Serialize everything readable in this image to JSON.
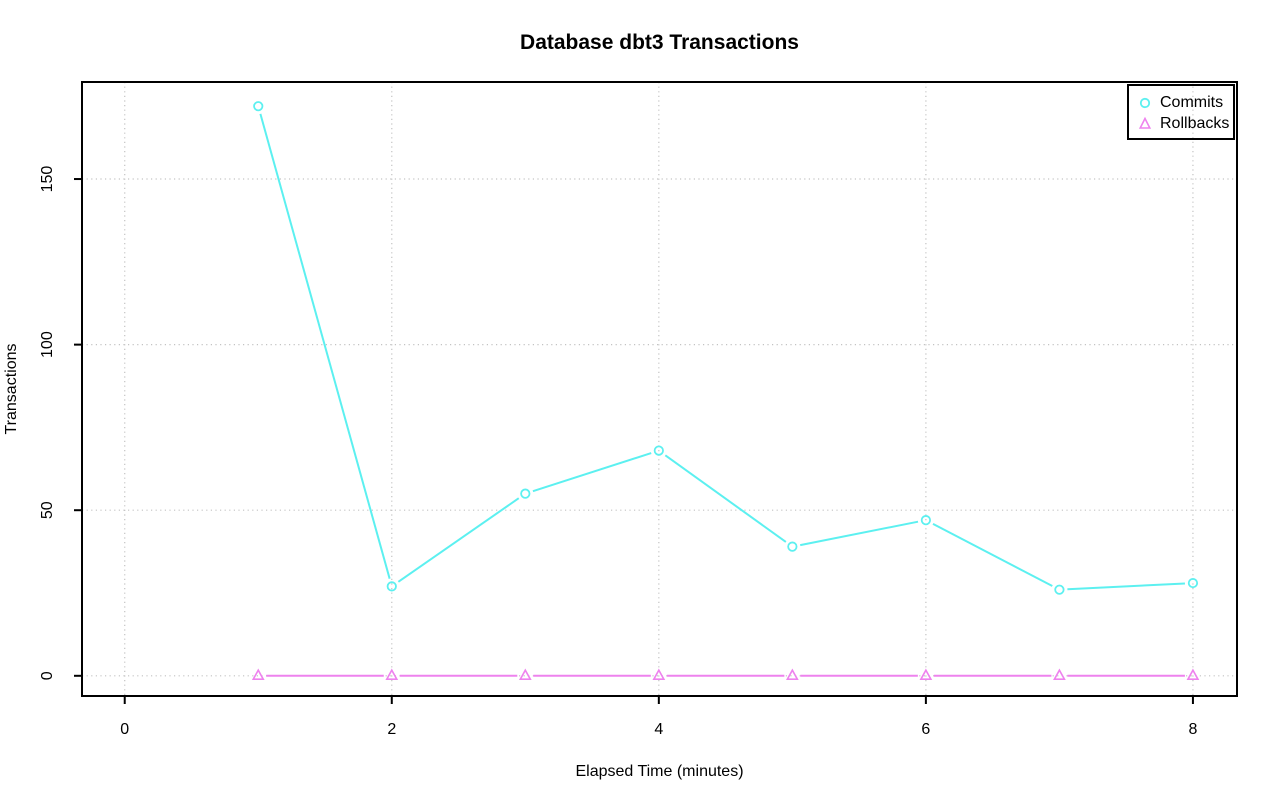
{
  "window": {
    "background": "#ffffff"
  },
  "chart_data": {
    "type": "line",
    "title": "Database dbt3 Transactions",
    "xlabel": "Elapsed Time (minutes)",
    "ylabel": "Transactions",
    "x": [
      1,
      2,
      3,
      4,
      5,
      6,
      7,
      8
    ],
    "series": [
      {
        "name": "Commits",
        "marker": "circle",
        "color": "#5CF0F0",
        "values": [
          172,
          27,
          55,
          68,
          39,
          47,
          26,
          28
        ]
      },
      {
        "name": "Rollbacks",
        "marker": "triangle",
        "color": "#EE82EE",
        "values": [
          0,
          0,
          0,
          0,
          0,
          0,
          0,
          0
        ]
      }
    ],
    "xticks": [
      "0",
      "2",
      "4",
      "6",
      "8"
    ],
    "xtick_values": [
      0,
      2,
      4,
      6,
      8
    ],
    "yticks": [
      "0",
      "50",
      "100",
      "150"
    ],
    "ytick_values": [
      0,
      50,
      100,
      150
    ],
    "xlim": [
      -0.32,
      8.33
    ],
    "ylim": [
      -6.1,
      179.3
    ],
    "grid": true,
    "grid_color": "#c3c3c3",
    "axis_color": "#000000",
    "legend": {
      "position": "topright"
    }
  }
}
